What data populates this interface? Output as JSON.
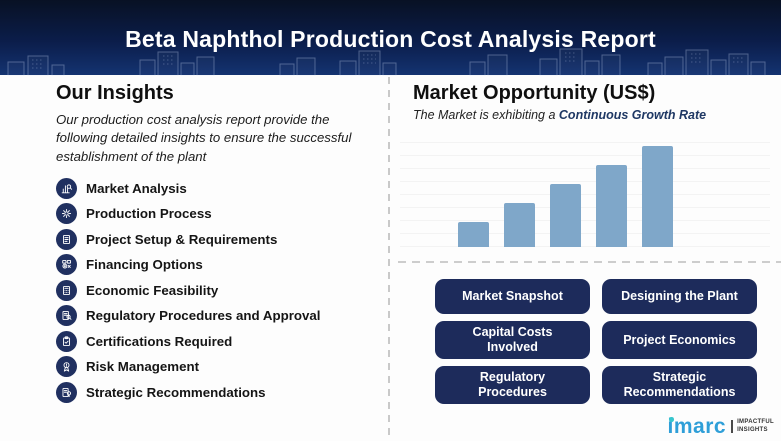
{
  "header": {
    "title": "Beta Naphthol Production Cost Analysis Report"
  },
  "left_panel": {
    "heading": "Our Insights",
    "description": "Our production cost analysis report provide the following detailed insights to ensure the successful establishment of the plant",
    "insights": [
      {
        "label": "Market Analysis",
        "icon": "bar-chart-magnifier-icon"
      },
      {
        "label": "Production Process",
        "icon": "gear-icon"
      },
      {
        "label": "Project Setup & Requirements",
        "icon": "document-list-icon"
      },
      {
        "label": "Financing Options",
        "icon": "coins-icon"
      },
      {
        "label": "Economic Feasibility",
        "icon": "calculator-icon"
      },
      {
        "label": "Regulatory Procedures and Approval",
        "icon": "document-magnifier-icon"
      },
      {
        "label": "Certifications Required",
        "icon": "clipboard-check-icon"
      },
      {
        "label": "Risk Management",
        "icon": "award-ribbon-icon"
      },
      {
        "label": "Strategic Recommendations",
        "icon": "document-bulb-icon"
      }
    ]
  },
  "right_panel": {
    "heading": "Market Opportunity (US$)",
    "subtitle_prefix": "The Market is exhibiting a ",
    "subtitle_accent": "Continuous Growth Rate",
    "buttons": [
      "Market Snapshot",
      "Designing the Plant",
      "Capital Costs Involved",
      "Project Economics",
      "Regulatory Procedures",
      "Strategic Recommendations"
    ]
  },
  "chart_data": {
    "type": "bar",
    "categories": [
      "",
      "",
      "",
      "",
      ""
    ],
    "values": [
      25,
      44,
      63,
      82,
      101
    ],
    "title": "Market Opportunity (US$)",
    "xlabel": "",
    "ylabel": "",
    "ylim": [
      0,
      110
    ],
    "grid": true,
    "legend": false,
    "bar_color": "#7fa7c9",
    "annotation": "The Market is exhibiting a Continuous Growth Rate"
  },
  "logo": {
    "brand": "imarc",
    "tagline": [
      "IMPACTFUL",
      "INSIGHTS"
    ]
  },
  "colors": {
    "header_navy": "#0b1d4a",
    "button_navy": "#1d2b5b",
    "bar_blue": "#7fa7c9",
    "accent_navy": "#1f3864",
    "brand_blue": "#2f9fd8",
    "brand_teal": "#38c6cd"
  }
}
